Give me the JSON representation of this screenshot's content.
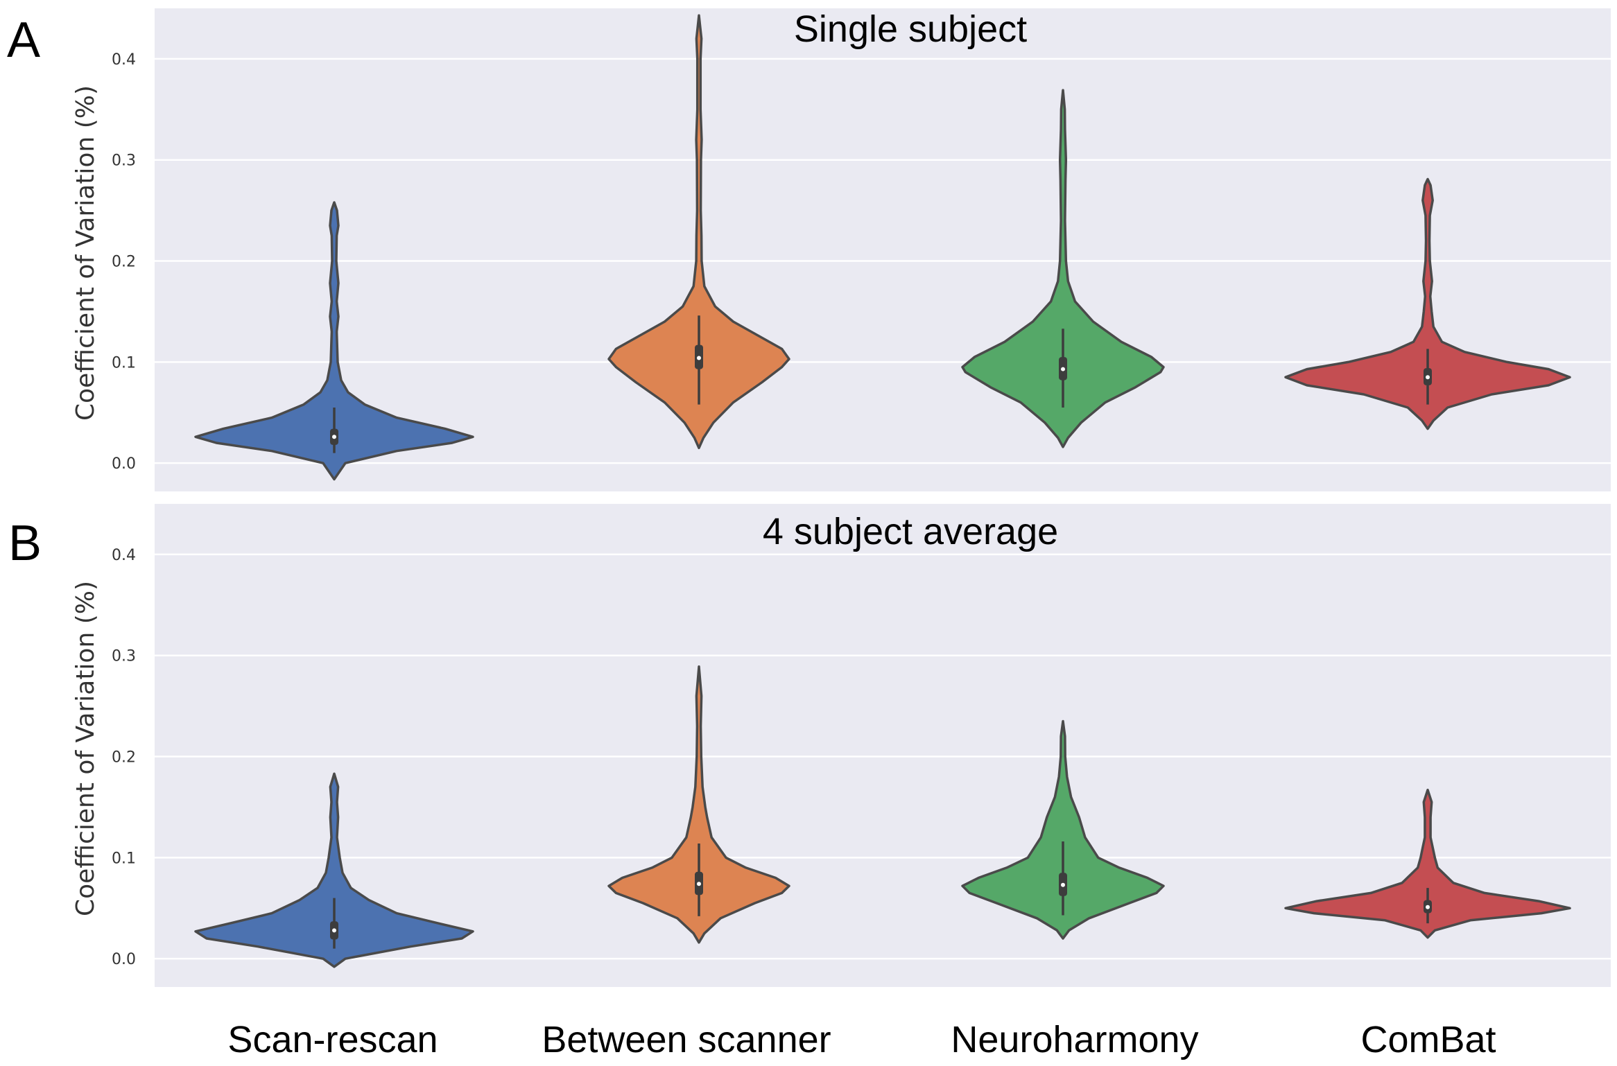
{
  "chart_data": {
    "type": "violin",
    "categories": [
      "Scan-rescan",
      "Between scanner",
      "Neuroharmony",
      "ComBat"
    ],
    "colors": [
      "#4c72b0",
      "#dd8452",
      "#55a868",
      "#c44e52"
    ],
    "ylim": [
      -0.028,
      0.45
    ],
    "yticks": [
      "0.0",
      "0.1",
      "0.2",
      "0.3",
      "0.4"
    ],
    "ytick_values": [
      0.0,
      0.1,
      0.2,
      0.3,
      0.4
    ],
    "panels": [
      {
        "label": "A",
        "title": "Single subject",
        "ylabel": "Coefficient of Variation (%)",
        "series": [
          {
            "name": "Scan-rescan",
            "stats": {
              "min": -0.016,
              "max": 0.258,
              "q1": 0.018,
              "median": 0.026,
              "q3": 0.034,
              "whisker_low": 0.01,
              "whisker_high": 0.055
            },
            "profile": [
              [
                -0.016,
                0
              ],
              [
                0.0,
                0.08
              ],
              [
                0.012,
                0.45
              ],
              [
                0.02,
                0.85
              ],
              [
                0.026,
                1.0
              ],
              [
                0.034,
                0.8
              ],
              [
                0.045,
                0.45
              ],
              [
                0.058,
                0.22
              ],
              [
                0.07,
                0.1
              ],
              [
                0.082,
                0.05
              ],
              [
                0.1,
                0.025
              ],
              [
                0.13,
                0.018
              ],
              [
                0.145,
                0.03
              ],
              [
                0.16,
                0.018
              ],
              [
                0.178,
                0.03
              ],
              [
                0.2,
                0.015
              ],
              [
                0.225,
                0.018
              ],
              [
                0.235,
                0.03
              ],
              [
                0.25,
                0.02
              ],
              [
                0.258,
                0
              ]
            ]
          },
          {
            "name": "Between scanner",
            "stats": {
              "min": 0.015,
              "max": 0.443,
              "q1": 0.093,
              "median": 0.104,
              "q3": 0.117,
              "whisker_low": 0.058,
              "whisker_high": 0.146
            },
            "profile": [
              [
                0.015,
                0
              ],
              [
                0.025,
                0.05
              ],
              [
                0.04,
                0.16
              ],
              [
                0.06,
                0.38
              ],
              [
                0.08,
                0.7
              ],
              [
                0.095,
                0.92
              ],
              [
                0.103,
                1.0
              ],
              [
                0.113,
                0.92
              ],
              [
                0.125,
                0.68
              ],
              [
                0.14,
                0.38
              ],
              [
                0.155,
                0.18
              ],
              [
                0.175,
                0.06
              ],
              [
                0.2,
                0.03
              ],
              [
                0.225,
                0.028
              ],
              [
                0.25,
                0.02
              ],
              [
                0.3,
                0.022
              ],
              [
                0.32,
                0.03
              ],
              [
                0.35,
                0.018
              ],
              [
                0.4,
                0.018
              ],
              [
                0.42,
                0.028
              ],
              [
                0.443,
                0
              ]
            ]
          },
          {
            "name": "Neuroharmony",
            "stats": {
              "min": 0.016,
              "max": 0.369,
              "q1": 0.082,
              "median": 0.093,
              "q3": 0.105,
              "whisker_low": 0.055,
              "whisker_high": 0.133
            },
            "profile": [
              [
                0.016,
                0
              ],
              [
                0.025,
                0.05
              ],
              [
                0.04,
                0.18
              ],
              [
                0.06,
                0.42
              ],
              [
                0.075,
                0.72
              ],
              [
                0.09,
                0.97
              ],
              [
                0.095,
                1.0
              ],
              [
                0.105,
                0.88
              ],
              [
                0.12,
                0.58
              ],
              [
                0.14,
                0.3
              ],
              [
                0.16,
                0.12
              ],
              [
                0.18,
                0.05
              ],
              [
                0.2,
                0.03
              ],
              [
                0.24,
                0.02
              ],
              [
                0.28,
                0.025
              ],
              [
                0.3,
                0.03
              ],
              [
                0.33,
                0.02
              ],
              [
                0.35,
                0.018
              ],
              [
                0.369,
                0
              ]
            ]
          },
          {
            "name": "ComBat",
            "stats": {
              "min": 0.034,
              "max": 0.281,
              "q1": 0.077,
              "median": 0.085,
              "q3": 0.094,
              "whisker_low": 0.058,
              "whisker_high": 0.113
            },
            "profile": [
              [
                0.034,
                0
              ],
              [
                0.042,
                0.04
              ],
              [
                0.055,
                0.14
              ],
              [
                0.068,
                0.45
              ],
              [
                0.077,
                0.85
              ],
              [
                0.085,
                1.0
              ],
              [
                0.093,
                0.85
              ],
              [
                0.1,
                0.56
              ],
              [
                0.11,
                0.26
              ],
              [
                0.12,
                0.1
              ],
              [
                0.135,
                0.04
              ],
              [
                0.15,
                0.028
              ],
              [
                0.165,
                0.018
              ],
              [
                0.18,
                0.03
              ],
              [
                0.2,
                0.015
              ],
              [
                0.22,
                0.012
              ],
              [
                0.245,
                0.015
              ],
              [
                0.26,
                0.035
              ],
              [
                0.275,
                0.02
              ],
              [
                0.281,
                0
              ]
            ]
          }
        ]
      },
      {
        "label": "B",
        "title": "4 subject average",
        "ylabel": "Coefficient of Variation (%)",
        "series": [
          {
            "name": "Scan-rescan",
            "stats": {
              "min": -0.008,
              "max": 0.183,
              "q1": 0.019,
              "median": 0.028,
              "q3": 0.037,
              "whisker_low": 0.01,
              "whisker_high": 0.06
            },
            "profile": [
              [
                -0.008,
                0
              ],
              [
                0.0,
                0.08
              ],
              [
                0.012,
                0.55
              ],
              [
                0.02,
                0.92
              ],
              [
                0.027,
                1.0
              ],
              [
                0.035,
                0.75
              ],
              [
                0.045,
                0.45
              ],
              [
                0.058,
                0.25
              ],
              [
                0.07,
                0.12
              ],
              [
                0.085,
                0.06
              ],
              [
                0.1,
                0.04
              ],
              [
                0.12,
                0.02
              ],
              [
                0.14,
                0.028
              ],
              [
                0.155,
                0.02
              ],
              [
                0.17,
                0.028
              ],
              [
                0.183,
                0
              ]
            ]
          },
          {
            "name": "Between scanner",
            "stats": {
              "min": 0.016,
              "max": 0.289,
              "q1": 0.063,
              "median": 0.074,
              "q3": 0.086,
              "whisker_low": 0.042,
              "whisker_high": 0.114
            },
            "profile": [
              [
                0.016,
                0
              ],
              [
                0.025,
                0.06
              ],
              [
                0.04,
                0.24
              ],
              [
                0.055,
                0.62
              ],
              [
                0.065,
                0.92
              ],
              [
                0.072,
                1.0
              ],
              [
                0.08,
                0.85
              ],
              [
                0.09,
                0.52
              ],
              [
                0.1,
                0.3
              ],
              [
                0.12,
                0.14
              ],
              [
                0.14,
                0.09
              ],
              [
                0.15,
                0.07
              ],
              [
                0.17,
                0.04
              ],
              [
                0.2,
                0.025
              ],
              [
                0.23,
                0.02
              ],
              [
                0.26,
                0.028
              ],
              [
                0.289,
                0
              ]
            ]
          },
          {
            "name": "Neuroharmony",
            "stats": {
              "min": 0.02,
              "max": 0.235,
              "q1": 0.062,
              "median": 0.073,
              "q3": 0.085,
              "whisker_low": 0.043,
              "whisker_high": 0.116
            },
            "profile": [
              [
                0.02,
                0
              ],
              [
                0.028,
                0.06
              ],
              [
                0.04,
                0.26
              ],
              [
                0.055,
                0.66
              ],
              [
                0.065,
                0.93
              ],
              [
                0.072,
                1.0
              ],
              [
                0.08,
                0.84
              ],
              [
                0.09,
                0.56
              ],
              [
                0.1,
                0.35
              ],
              [
                0.12,
                0.22
              ],
              [
                0.14,
                0.16
              ],
              [
                0.16,
                0.08
              ],
              [
                0.18,
                0.04
              ],
              [
                0.2,
                0.022
              ],
              [
                0.22,
                0.02
              ],
              [
                0.235,
                0
              ]
            ]
          },
          {
            "name": "ComBat",
            "stats": {
              "min": 0.021,
              "max": 0.167,
              "q1": 0.045,
              "median": 0.051,
              "q3": 0.058,
              "whisker_low": 0.035,
              "whisker_high": 0.07
            },
            "profile": [
              [
                0.021,
                0
              ],
              [
                0.028,
                0.05
              ],
              [
                0.038,
                0.3
              ],
              [
                0.045,
                0.8
              ],
              [
                0.05,
                1.0
              ],
              [
                0.057,
                0.78
              ],
              [
                0.065,
                0.4
              ],
              [
                0.075,
                0.18
              ],
              [
                0.09,
                0.07
              ],
              [
                0.1,
                0.05
              ],
              [
                0.11,
                0.035
              ],
              [
                0.12,
                0.02
              ],
              [
                0.14,
                0.02
              ],
              [
                0.155,
                0.028
              ],
              [
                0.167,
                0
              ]
            ]
          }
        ]
      }
    ]
  }
}
